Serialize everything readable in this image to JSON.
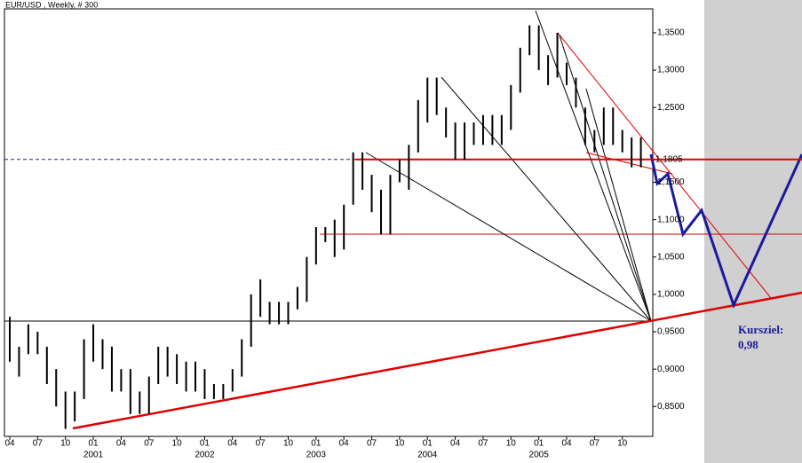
{
  "chart_data": {
    "type": "range",
    "title": "EUR/USD , Weekly, # 300",
    "categories": [
      "04",
      null,
      null,
      "07",
      null,
      null,
      "10",
      null,
      null,
      "01",
      null,
      null,
      "04",
      null,
      null,
      "07",
      null,
      null,
      "10",
      null,
      null,
      "01",
      null,
      null,
      "04",
      null,
      null,
      "07",
      null,
      null,
      "10",
      null,
      null,
      "01",
      null,
      null,
      "04",
      null,
      null,
      "07",
      null,
      null,
      "10",
      null,
      null,
      "01",
      null,
      null,
      "04",
      null,
      null,
      "07",
      null,
      null,
      "10",
      null,
      null,
      "01",
      null,
      null,
      "04",
      null,
      null,
      "07",
      null,
      null,
      "10",
      null,
      null
    ],
    "years": [
      null,
      null,
      null,
      null,
      null,
      null,
      null,
      null,
      null,
      "2001",
      null,
      null,
      null,
      null,
      null,
      null,
      null,
      null,
      null,
      null,
      null,
      "2002",
      null,
      null,
      null,
      null,
      null,
      null,
      null,
      null,
      null,
      null,
      null,
      "2003",
      null,
      null,
      null,
      null,
      null,
      null,
      null,
      null,
      null,
      null,
      null,
      "2004",
      null,
      null,
      null,
      null,
      null,
      null,
      null,
      null,
      null,
      null,
      null,
      "2005",
      null,
      null,
      null,
      null,
      null,
      null,
      null,
      null,
      null,
      null,
      null
    ],
    "high": [
      0.97,
      0.93,
      0.96,
      0.95,
      0.93,
      0.9,
      0.87,
      0.87,
      0.94,
      0.96,
      0.94,
      0.93,
      0.9,
      0.9,
      0.87,
      0.89,
      0.93,
      0.93,
      0.92,
      0.91,
      0.91,
      0.9,
      0.88,
      0.88,
      0.9,
      0.94,
      1.0,
      1.02,
      0.99,
      0.99,
      0.99,
      1.01,
      1.05,
      1.09,
      1.09,
      1.1,
      1.12,
      1.19,
      1.19,
      1.16,
      1.14,
      1.16,
      1.18,
      1.2,
      1.26,
      1.29,
      1.29,
      1.25,
      1.23,
      1.23,
      1.23,
      1.24,
      1.24,
      1.24,
      1.28,
      1.33,
      1.36,
      1.36,
      1.32,
      1.35,
      1.31,
      1.29,
      1.25,
      1.22,
      1.25,
      1.25,
      1.22,
      1.21,
      1.21
    ],
    "low": [
      0.91,
      0.89,
      0.92,
      0.92,
      0.88,
      0.85,
      0.82,
      0.83,
      0.86,
      0.91,
      0.9,
      0.87,
      0.87,
      0.84,
      0.84,
      0.84,
      0.88,
      0.89,
      0.88,
      0.87,
      0.87,
      0.86,
      0.86,
      0.86,
      0.87,
      0.89,
      0.93,
      0.97,
      0.96,
      0.96,
      0.96,
      0.98,
      0.99,
      1.04,
      1.07,
      1.05,
      1.06,
      1.12,
      1.14,
      1.11,
      1.08,
      1.08,
      1.15,
      1.14,
      1.19,
      1.23,
      1.24,
      1.21,
      1.18,
      1.18,
      1.2,
      1.2,
      1.2,
      1.2,
      1.22,
      1.27,
      1.32,
      1.3,
      1.28,
      1.29,
      1.28,
      1.25,
      1.2,
      1.19,
      1.2,
      1.2,
      1.19,
      1.17,
      1.17
    ],
    "color": "#000000",
    "ylim": [
      0.81,
      1.382
    ],
    "yticks": [
      {
        "value": 0.85,
        "label": "0,8500"
      },
      {
        "value": 0.9,
        "label": "0,9000"
      },
      {
        "value": 0.95,
        "label": "0,9500"
      },
      {
        "value": 1.0,
        "label": "1,0000"
      },
      {
        "value": 1.05,
        "label": "1,0500"
      },
      {
        "value": 1.1,
        "label": "1,1000"
      },
      {
        "value": 1.15,
        "label": "1,1500"
      },
      {
        "value": 1.25,
        "label": "1,2500"
      },
      {
        "value": 1.3,
        "label": "1,3000"
      },
      {
        "value": 1.35,
        "label": "1,3500"
      }
    ],
    "level": {
      "value": 1.1805,
      "label": "1,1805"
    },
    "annotations": [
      "Kursziel:",
      "0,98"
    ]
  }
}
